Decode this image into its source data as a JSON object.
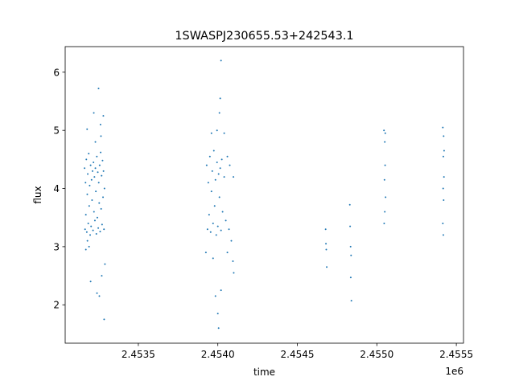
{
  "chart_data": {
    "type": "scatter",
    "title": "1SWASPJ230655.53+242543.1",
    "xlabel": "time",
    "ylabel": "flux",
    "x_offset_label": "1e6",
    "xlim": [
      2453040,
      2455545
    ],
    "ylim": [
      1.34,
      6.44
    ],
    "xticks": [
      2453500,
      2454000,
      2454500,
      2455000,
      2455500
    ],
    "xtick_labels": [
      "2.4535",
      "2.4540",
      "2.4545",
      "2.4550",
      "2.4555"
    ],
    "yticks": [
      2,
      3,
      4,
      5,
      6
    ],
    "ytick_labels": [
      "2",
      "3",
      "4",
      "5",
      "6"
    ],
    "grid": false,
    "marker_color": "#1f77b4",
    "points": [
      [
        2453162,
        4.35
      ],
      [
        2453165,
        3.3
      ],
      [
        2453168,
        4.1
      ],
      [
        2453170,
        3.55
      ],
      [
        2453173,
        4.5
      ],
      [
        2453176,
        3.25
      ],
      [
        2453179,
        3.9
      ],
      [
        2453182,
        4.25
      ],
      [
        2453185,
        3.4
      ],
      [
        2453188,
        4.6
      ],
      [
        2453191,
        3.7
      ],
      [
        2453194,
        4.05
      ],
      [
        2453197,
        3.2
      ],
      [
        2453200,
        4.4
      ],
      [
        2453203,
        3.35
      ],
      [
        2453206,
        4.15
      ],
      [
        2453209,
        3.8
      ],
      [
        2453212,
        4.3
      ],
      [
        2453215,
        3.28
      ],
      [
        2453218,
        4.45
      ],
      [
        2453221,
        3.6
      ],
      [
        2453224,
        4.2
      ],
      [
        2453227,
        3.45
      ],
      [
        2453230,
        4.35
      ],
      [
        2453233,
        3.95
      ],
      [
        2453236,
        3.22
      ],
      [
        2453239,
        4.55
      ],
      [
        2453242,
        3.5
      ],
      [
        2453245,
        4.28
      ],
      [
        2453248,
        3.32
      ],
      [
        2453251,
        4.1
      ],
      [
        2453254,
        3.75
      ],
      [
        2453257,
        4.4
      ],
      [
        2453260,
        3.26
      ],
      [
        2453263,
        4.62
      ],
      [
        2453266,
        3.65
      ],
      [
        2453269,
        4.22
      ],
      [
        2453272,
        3.38
      ],
      [
        2453275,
        4.48
      ],
      [
        2453278,
        3.85
      ],
      [
        2453281,
        4.3
      ],
      [
        2453284,
        3.3
      ],
      [
        2453287,
        4.0
      ],
      [
        2453178,
        5.02
      ],
      [
        2453220,
        5.3
      ],
      [
        2453250,
        5.72
      ],
      [
        2453262,
        5.1
      ],
      [
        2453280,
        5.25
      ],
      [
        2453170,
        2.95
      ],
      [
        2453200,
        2.4
      ],
      [
        2453240,
        2.2
      ],
      [
        2453255,
        2.15
      ],
      [
        2453270,
        2.5
      ],
      [
        2453285,
        1.75
      ],
      [
        2453290,
        2.7
      ],
      [
        2453180,
        3.1
      ],
      [
        2453230,
        4.8
      ],
      [
        2453265,
        4.9
      ],
      [
        2453190,
        3.0
      ],
      [
        2453930,
        4.4
      ],
      [
        2453935,
        3.3
      ],
      [
        2453940,
        4.1
      ],
      [
        2453945,
        3.55
      ],
      [
        2453950,
        4.55
      ],
      [
        2453955,
        3.25
      ],
      [
        2453960,
        3.95
      ],
      [
        2453965,
        4.3
      ],
      [
        2453970,
        3.4
      ],
      [
        2453975,
        4.65
      ],
      [
        2453980,
        3.7
      ],
      [
        2453985,
        4.15
      ],
      [
        2453990,
        3.2
      ],
      [
        2453995,
        4.45
      ],
      [
        2454000,
        3.35
      ],
      [
        2454005,
        4.25
      ],
      [
        2454010,
        3.85
      ],
      [
        2454015,
        4.35
      ],
      [
        2454020,
        3.28
      ],
      [
        2454025,
        4.5
      ],
      [
        2454030,
        3.6
      ],
      [
        2454040,
        4.2
      ],
      [
        2454050,
        3.45
      ],
      [
        2454060,
        4.55
      ],
      [
        2454070,
        3.3
      ],
      [
        2454075,
        4.4
      ],
      [
        2454085,
        3.1
      ],
      [
        2454095,
        2.75
      ],
      [
        2454100,
        2.55
      ],
      [
        2454098,
        4.2
      ],
      [
        2453925,
        2.9
      ],
      [
        2453960,
        4.95
      ],
      [
        2453995,
        5.0
      ],
      [
        2454010,
        5.3
      ],
      [
        2454015,
        5.55
      ],
      [
        2454020,
        6.2
      ],
      [
        2454040,
        4.95
      ],
      [
        2453985,
        2.15
      ],
      [
        2454000,
        1.85
      ],
      [
        2454005,
        1.6
      ],
      [
        2454020,
        2.25
      ],
      [
        2454060,
        2.9
      ],
      [
        2453970,
        2.8
      ],
      [
        2454680,
        3.05
      ],
      [
        2454682,
        2.95
      ],
      [
        2454678,
        3.3
      ],
      [
        2454685,
        2.65
      ],
      [
        2454830,
        3.72
      ],
      [
        2454832,
        3.35
      ],
      [
        2454835,
        3.0
      ],
      [
        2454838,
        2.85
      ],
      [
        2454836,
        2.47
      ],
      [
        2454840,
        2.07
      ],
      [
        2455045,
        5.0
      ],
      [
        2455050,
        4.8
      ],
      [
        2455052,
        4.4
      ],
      [
        2455048,
        4.15
      ],
      [
        2455055,
        3.85
      ],
      [
        2455050,
        3.6
      ],
      [
        2455046,
        3.4
      ],
      [
        2455053,
        4.95
      ],
      [
        2455415,
        5.05
      ],
      [
        2455420,
        4.9
      ],
      [
        2455418,
        4.55
      ],
      [
        2455422,
        4.2
      ],
      [
        2455417,
        4.0
      ],
      [
        2455420,
        3.8
      ],
      [
        2455415,
        3.4
      ],
      [
        2455418,
        3.2
      ],
      [
        2455423,
        4.65
      ]
    ]
  }
}
